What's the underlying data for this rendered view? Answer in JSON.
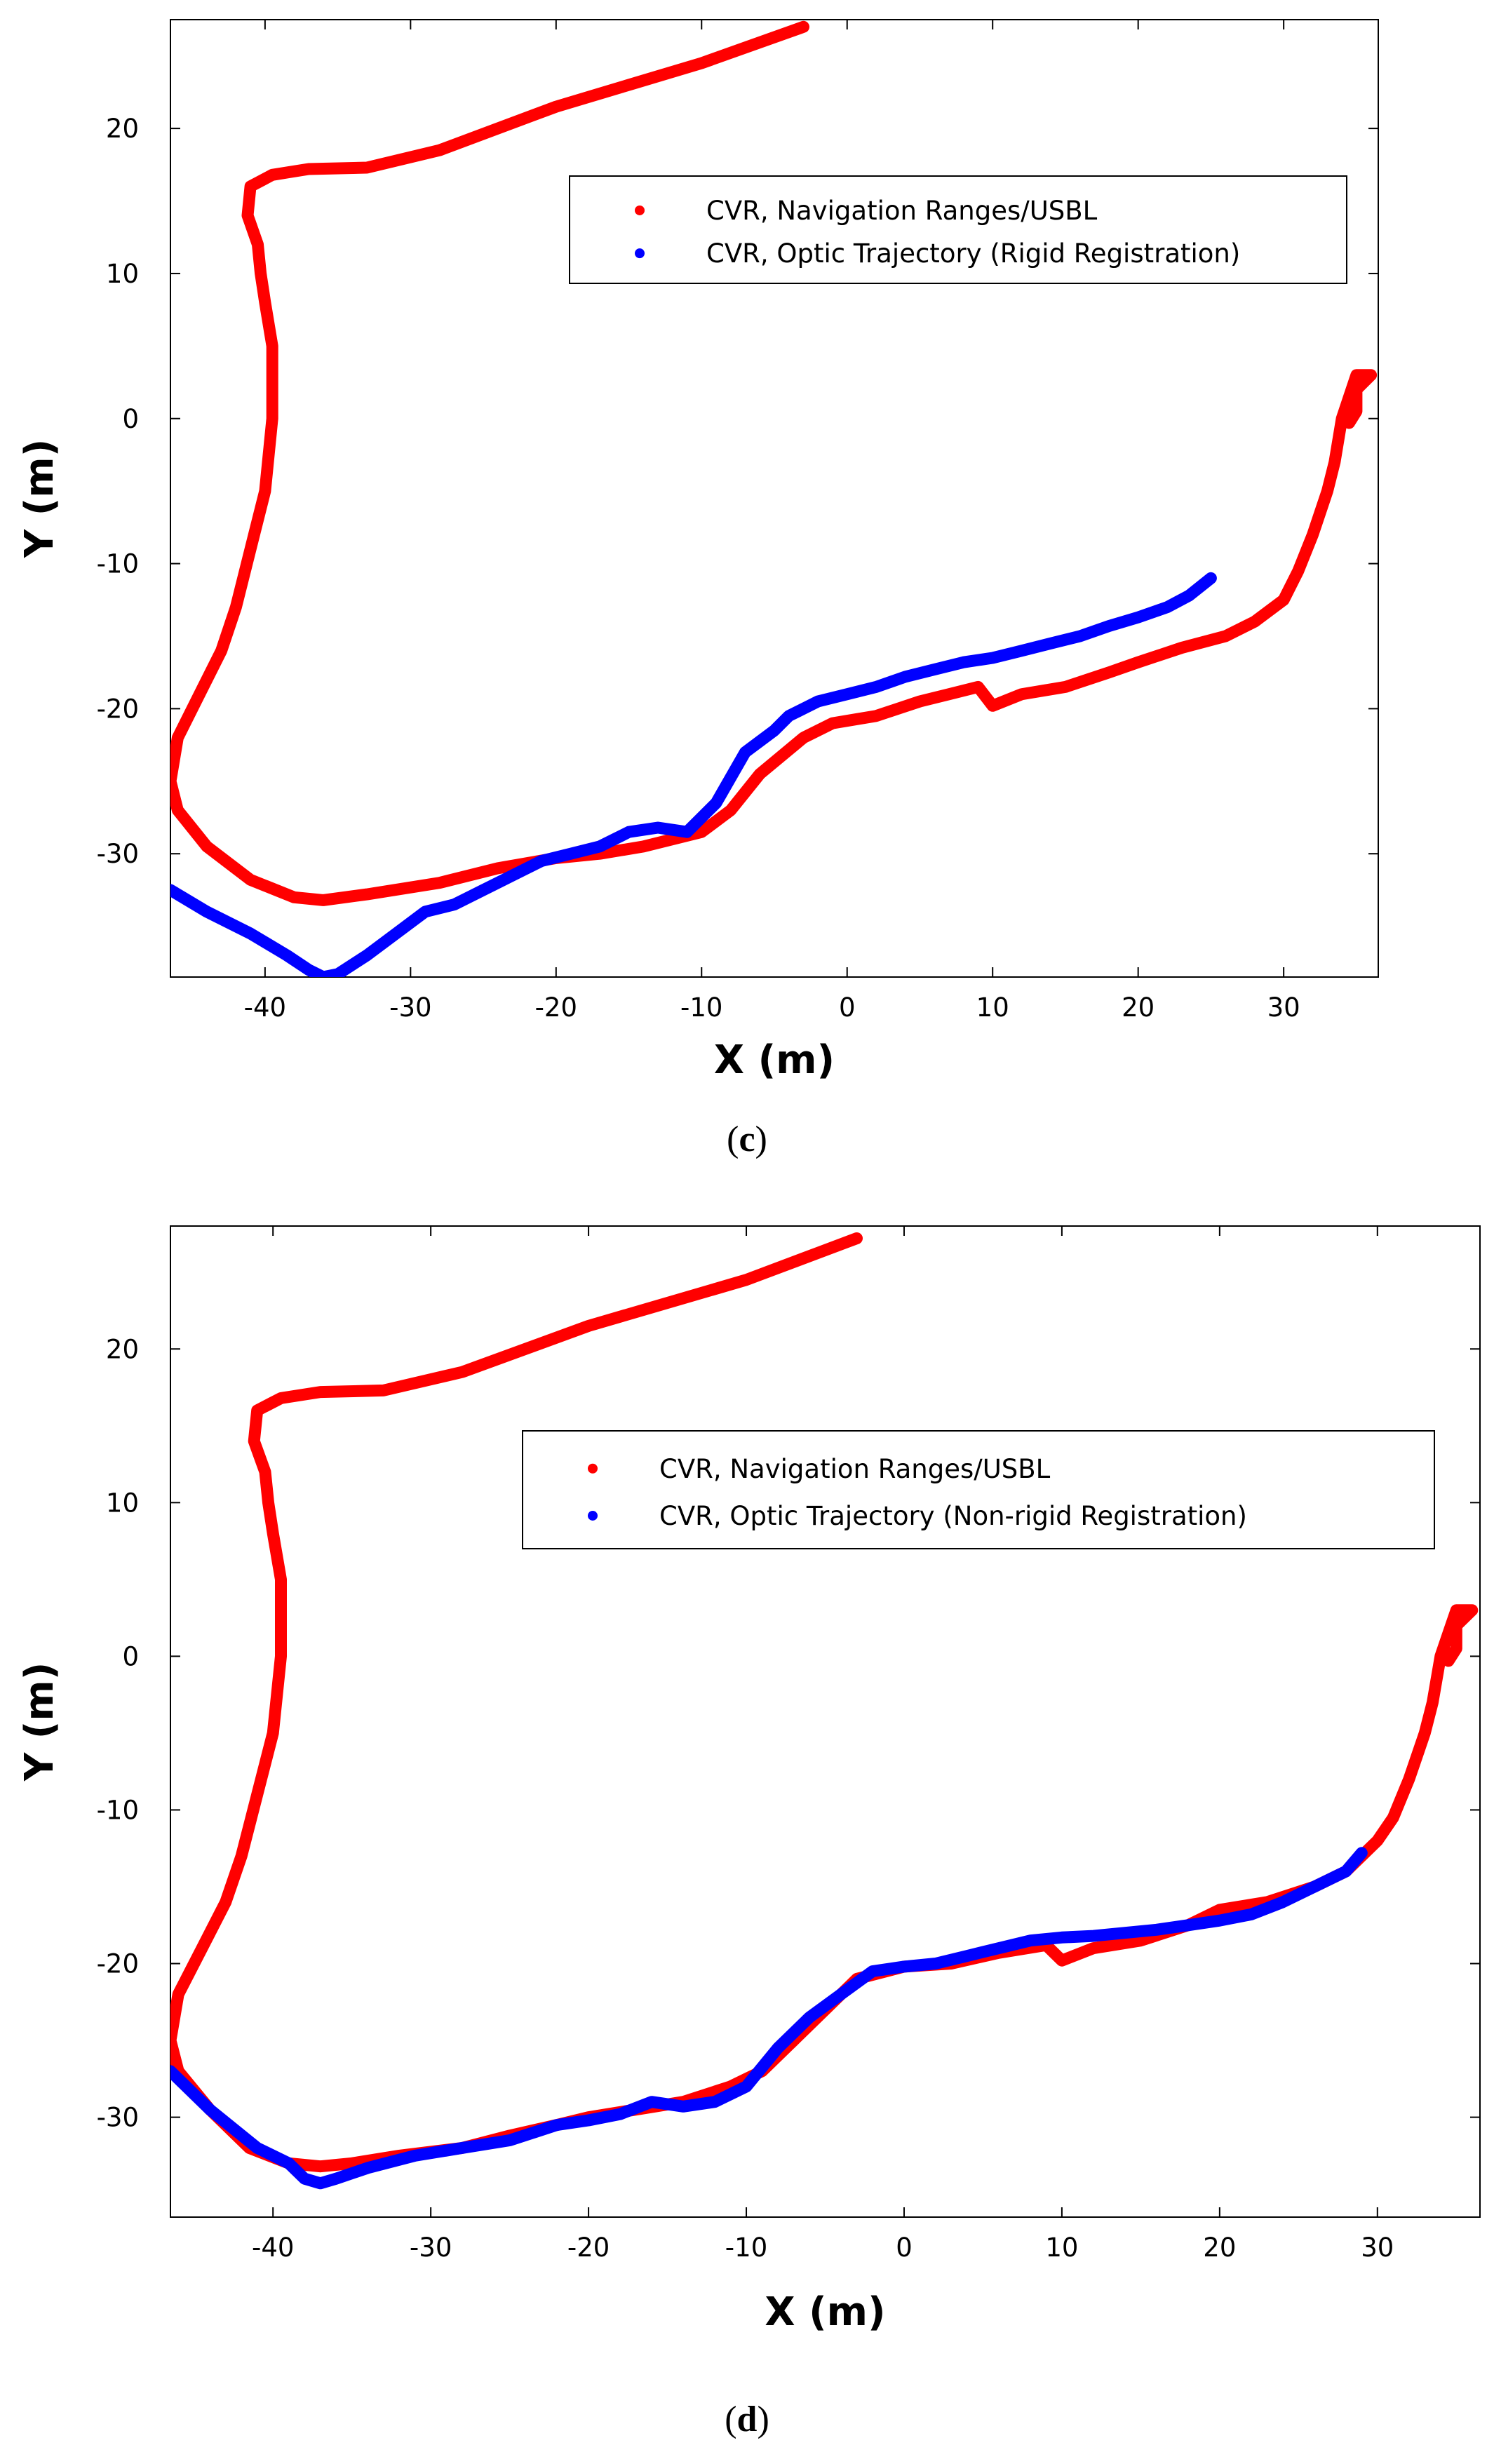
{
  "chart_data": [
    {
      "type": "scatter",
      "panel": "c",
      "caption": "c",
      "xlabel": "X (m)",
      "ylabel": "Y (m)",
      "xlim": [
        -46.5,
        36.5
      ],
      "ylim": [
        -38.5,
        27.5
      ],
      "xticks": [
        -40,
        -30,
        -20,
        -10,
        0,
        10,
        20,
        30
      ],
      "yticks": [
        -30,
        -20,
        -10,
        0,
        10,
        20
      ],
      "legend_position": "top-right",
      "series": [
        {
          "name": "CVR, Navigation Ranges/USBL",
          "color": "#ff0000",
          "x": [
            -3,
            -10,
            -20,
            -28,
            -33,
            -37,
            -39.5,
            -41,
            -41.2,
            -40.5,
            -40.3,
            -40,
            -39.5,
            -39.5,
            -40,
            -41,
            -42,
            -43,
            -44.5,
            -46,
            -46.5,
            -46,
            -44,
            -41,
            -38,
            -36,
            -33,
            -28,
            -24,
            -20,
            -17,
            -14,
            -10,
            -8,
            -6,
            -3,
            -1,
            2,
            5,
            7,
            9,
            10,
            12,
            15,
            18,
            20,
            23,
            26,
            28,
            30,
            31,
            32,
            33,
            33.5,
            34,
            34.5,
            35,
            35.5,
            36,
            35,
            35,
            34.5
          ],
          "y": [
            27,
            24.5,
            21.5,
            18.5,
            17.3,
            17.2,
            16.8,
            16,
            14,
            12,
            10,
            8,
            5,
            0,
            -5,
            -9,
            -13,
            -16,
            -19,
            -22,
            -25,
            -27,
            -29.5,
            -31.8,
            -33,
            -33.2,
            -32.8,
            -32,
            -31,
            -30.3,
            -30,
            -29.5,
            -28.5,
            -27,
            -24.5,
            -22,
            -21,
            -20.5,
            -19.5,
            -19,
            -18.5,
            -19.8,
            -19,
            -18.5,
            -17.5,
            -16.8,
            -15.8,
            -15,
            -14,
            -12.5,
            -10.5,
            -8,
            -5,
            -3,
            0,
            1.5,
            3,
            3,
            3,
            2,
            0.5,
            -0.3
          ]
        },
        {
          "name": "CVR, Optic Trajectory (Rigid Registration)",
          "color": "#0000ff",
          "x": [
            -46.5,
            -44,
            -41,
            -38.5,
            -37,
            -36,
            -35,
            -33,
            -31,
            -29,
            -27,
            -25,
            -23,
            -21,
            -19,
            -17,
            -15,
            -13,
            -11,
            -9,
            -7,
            -5,
            -4,
            -2,
            0,
            2,
            4,
            6,
            8,
            10,
            12,
            14,
            16,
            18,
            20,
            22,
            23.5,
            25
          ],
          "y": [
            -32.5,
            -34,
            -35.5,
            -37,
            -38,
            -38.5,
            -38.3,
            -37,
            -35.5,
            -34,
            -33.5,
            -32.5,
            -31.5,
            -30.5,
            -30,
            -29.5,
            -28.5,
            -28.2,
            -28.5,
            -26.5,
            -23,
            -21.5,
            -20.5,
            -19.5,
            -19,
            -18.5,
            -17.8,
            -17.3,
            -16.8,
            -16.5,
            -16,
            -15.5,
            -15,
            -14.3,
            -13.7,
            -13,
            -12.2,
            -11
          ]
        }
      ]
    },
    {
      "type": "scatter",
      "panel": "d",
      "caption": "d",
      "xlabel": "X (m)",
      "ylabel": "Y (m)",
      "xlim": [
        -46.5,
        36.5
      ],
      "ylim": [
        -36.5,
        28
      ],
      "xticks": [
        -40,
        -30,
        -20,
        -10,
        0,
        10,
        20,
        30
      ],
      "yticks": [
        -30,
        -20,
        -10,
        0,
        10,
        20
      ],
      "legend_position": "top-right",
      "series": [
        {
          "name": "CVR, Navigation Ranges/USBL",
          "color": "#ff0000",
          "x": [
            -3,
            -10,
            -20,
            -28,
            -33,
            -37,
            -39.5,
            -41,
            -41.2,
            -40.5,
            -40.3,
            -40,
            -39.5,
            -39.5,
            -40,
            -41,
            -42,
            -43,
            -44.5,
            -46,
            -46.5,
            -46,
            -44,
            -41.5,
            -39,
            -37,
            -35,
            -32,
            -28,
            -25,
            -22,
            -20,
            -17,
            -14,
            -11,
            -9,
            -7,
            -5,
            -3,
            0,
            3,
            6,
            9,
            10,
            12,
            15,
            18,
            20,
            23,
            26,
            28,
            30,
            31,
            32,
            33,
            33.5,
            34,
            34.5,
            35,
            35.5,
            36,
            35,
            35,
            34.5
          ],
          "y": [
            27.2,
            24.5,
            21.5,
            18.5,
            17.3,
            17.2,
            16.8,
            16,
            14,
            12,
            10,
            8,
            5,
            0,
            -5,
            -9,
            -13,
            -16,
            -19,
            -22,
            -25,
            -27,
            -29.5,
            -32,
            -33,
            -33.2,
            -33,
            -32.5,
            -32,
            -31.2,
            -30.5,
            -30,
            -29.5,
            -29,
            -28,
            -27,
            -25,
            -23,
            -21,
            -20.2,
            -20,
            -19.3,
            -18.8,
            -19.8,
            -19,
            -18.5,
            -17.5,
            -16.5,
            -16,
            -15,
            -14,
            -12,
            -10.5,
            -8,
            -5,
            -3,
            0,
            1.5,
            3,
            3,
            3,
            2,
            0.5,
            -0.3
          ]
        },
        {
          "name": "CVR, Optic Trajectory (Non-rigid Registration)",
          "color": "#0000ff",
          "x": [
            -46.5,
            -44,
            -41,
            -39,
            -38,
            -37,
            -36,
            -34,
            -31,
            -28,
            -25,
            -22,
            -20,
            -18,
            -16,
            -14,
            -12,
            -10,
            -8,
            -6,
            -4,
            -2,
            0,
            2,
            4,
            6,
            8,
            10,
            12,
            14,
            16,
            18,
            20,
            22,
            24,
            26,
            28,
            29
          ],
          "y": [
            -27,
            -29.5,
            -32,
            -33,
            -34,
            -34.3,
            -34,
            -33.3,
            -32.5,
            -32,
            -31.5,
            -30.5,
            -30.2,
            -29.8,
            -29,
            -29.3,
            -29,
            -28,
            -25.5,
            -23.5,
            -22,
            -20.5,
            -20.2,
            -20,
            -19.5,
            -19,
            -18.5,
            -18.3,
            -18.2,
            -18,
            -17.8,
            -17.5,
            -17.2,
            -16.8,
            -16,
            -15,
            -14,
            -12.8
          ]
        }
      ]
    }
  ]
}
